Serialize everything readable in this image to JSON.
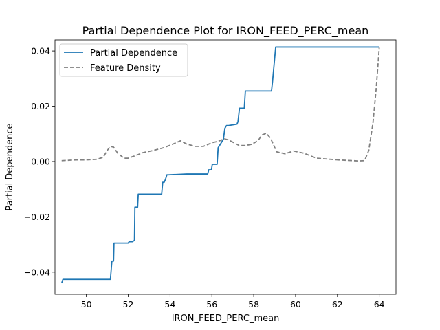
{
  "chart_data": {
    "type": "line",
    "title": "Partial Dependence Plot for IRON_FEED_PERC_mean",
    "xlabel": "IRON_FEED_PERC_mean",
    "ylabel": "Partial Dependence",
    "xlim": [
      48.5,
      64.8
    ],
    "ylim": [
      -0.048,
      0.044
    ],
    "xticks": [
      50,
      52,
      54,
      56,
      58,
      60,
      62,
      64
    ],
    "yticks": [
      -0.04,
      -0.02,
      0.0,
      0.02,
      0.04
    ],
    "ytick_labels": [
      "−0.04",
      "−0.02",
      "0.00",
      "0.02",
      "0.04"
    ],
    "grid": false,
    "legend_position": "top-left",
    "series": [
      {
        "name": "Partial Dependence",
        "style": "solid",
        "color": "#1f77b4",
        "x": [
          48.82,
          48.88,
          48.95,
          51.15,
          51.22,
          51.3,
          51.32,
          51.4,
          52.0,
          52.05,
          52.2,
          52.3,
          52.32,
          52.45,
          52.48,
          52.55,
          53.6,
          53.65,
          53.72,
          53.78,
          53.85,
          53.92,
          54.8,
          55.8,
          55.85,
          55.98,
          56.02,
          56.25,
          56.3,
          56.55,
          56.62,
          56.7,
          56.8,
          57.2,
          57.25,
          57.32,
          57.38,
          57.55,
          57.6,
          58.85,
          58.9,
          59.05,
          63.98,
          64.0
        ],
        "y": [
          -0.044,
          -0.0426,
          -0.0426,
          -0.0426,
          -0.036,
          -0.036,
          -0.0295,
          -0.0295,
          -0.0295,
          -0.029,
          -0.029,
          -0.0285,
          -0.0165,
          -0.0165,
          -0.0118,
          -0.0118,
          -0.0118,
          -0.0075,
          -0.0075,
          -0.0065,
          -0.0048,
          -0.0048,
          -0.0045,
          -0.0045,
          -0.003,
          -0.003,
          -0.001,
          -0.001,
          0.005,
          0.008,
          0.012,
          0.013,
          0.013,
          0.0135,
          0.0145,
          0.0193,
          0.0193,
          0.0193,
          0.0255,
          0.0255,
          0.029,
          0.0414,
          0.0414,
          0.0414
        ]
      },
      {
        "name": "Feature Density",
        "style": "dashed",
        "color": "#808080",
        "x": [
          48.82,
          49.5,
          50.0,
          50.5,
          50.8,
          51.0,
          51.15,
          51.3,
          51.5,
          51.8,
          52.0,
          52.3,
          52.7,
          53.2,
          53.7,
          54.2,
          54.5,
          54.8,
          55.2,
          55.6,
          56.0,
          56.3,
          56.6,
          56.8,
          57.0,
          57.3,
          57.6,
          57.9,
          58.2,
          58.4,
          58.6,
          58.8,
          59.1,
          59.5,
          59.9,
          60.4,
          61.0,
          62.0,
          63.0,
          63.3,
          63.5,
          63.7,
          63.85,
          63.95,
          64.0
        ],
        "y": [
          0.0003,
          0.0006,
          0.0006,
          0.0008,
          0.0015,
          0.004,
          0.0055,
          0.0052,
          0.003,
          0.0012,
          0.0012,
          0.002,
          0.0032,
          0.004,
          0.005,
          0.0065,
          0.0075,
          0.0063,
          0.0055,
          0.0055,
          0.0068,
          0.0073,
          0.0082,
          0.0078,
          0.007,
          0.0058,
          0.0058,
          0.0062,
          0.0075,
          0.0096,
          0.0102,
          0.0085,
          0.0035,
          0.0028,
          0.0038,
          0.003,
          0.0012,
          0.0006,
          0.0002,
          0.0003,
          0.004,
          0.014,
          0.026,
          0.036,
          0.0412
        ]
      }
    ]
  }
}
